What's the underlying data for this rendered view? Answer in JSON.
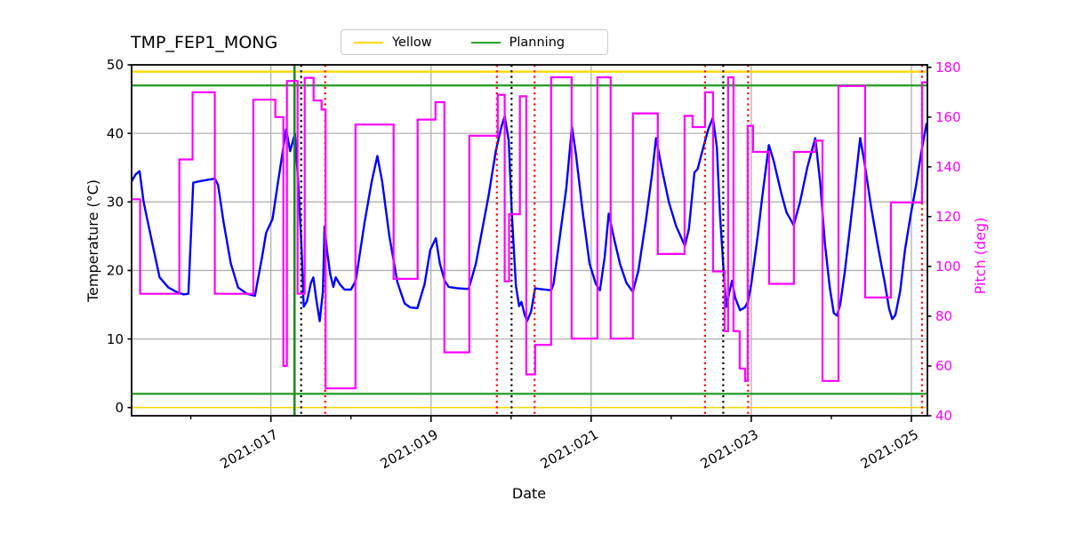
{
  "title": "TMP_FEP1_MONG",
  "legend": {
    "items": [
      {
        "label": "Yellow",
        "color": "#FFD700"
      },
      {
        "label": "Planning",
        "color": "#2CA02C"
      }
    ]
  },
  "colors": {
    "temperature": "#0000FF",
    "pitch": "#FF00FF",
    "yellow_limit": "#FFD700",
    "planning_limit": "#2CA02C",
    "red_marker": "#FF0000",
    "black_marker": "#000000",
    "green_marker": "#1E8C1E",
    "grid": "#B0B0B0",
    "spine": "#000000",
    "right_axis_text": "#FF00FF"
  },
  "axes": {
    "x_label": "Date",
    "y_left_label": "Temperature (°C)",
    "y_right_label": "Pitch (deg)",
    "x_range_days": [
      15.26,
      25.2
    ],
    "y_left_range": [
      -1.2,
      50
    ],
    "y_right_range": [
      40,
      181
    ],
    "x_ticks_major": [
      {
        "day": 17,
        "label": "2021:017"
      },
      {
        "day": 19,
        "label": "2021:019"
      },
      {
        "day": 21,
        "label": "2021:021"
      },
      {
        "day": 23,
        "label": "2021:023"
      },
      {
        "day": 25,
        "label": "2021:025"
      }
    ],
    "x_ticks_minor": [
      16,
      18,
      20,
      22,
      24
    ],
    "y_left_ticks": [
      0,
      10,
      20,
      30,
      40,
      50
    ],
    "y_right_ticks": [
      40,
      60,
      80,
      100,
      120,
      140,
      160,
      180
    ],
    "grid": "on"
  },
  "chart_data": {
    "type": "line",
    "title": "TMP_FEP1_MONG",
    "xlabel": "Date",
    "ylabel_left": "Temperature (°C)",
    "ylabel_right": "Pitch (deg)",
    "series": [
      {
        "name": "temperature",
        "axis": "left",
        "style": "line",
        "points": [
          [
            15.26,
            33.0
          ],
          [
            15.31,
            34.0
          ],
          [
            15.36,
            34.5
          ],
          [
            15.41,
            30.0
          ],
          [
            15.5,
            25.0
          ],
          [
            15.61,
            19.0
          ],
          [
            15.72,
            17.5
          ],
          [
            15.83,
            16.8
          ],
          [
            15.91,
            16.5
          ],
          [
            15.97,
            16.6
          ],
          [
            16.03,
            32.8
          ],
          [
            16.1,
            33.0
          ],
          [
            16.3,
            33.4
          ],
          [
            16.34,
            32.5
          ],
          [
            16.41,
            27.0
          ],
          [
            16.5,
            21.0
          ],
          [
            16.59,
            17.5
          ],
          [
            16.7,
            16.6
          ],
          [
            16.8,
            16.3
          ],
          [
            16.89,
            22.0
          ],
          [
            16.94,
            25.5
          ],
          [
            17.02,
            27.5
          ],
          [
            17.09,
            33.0
          ],
          [
            17.19,
            40.6
          ],
          [
            17.24,
            37.4
          ],
          [
            17.3,
            40.0
          ],
          [
            17.34,
            33.0
          ],
          [
            17.38,
            24.0
          ],
          [
            17.41,
            14.7
          ],
          [
            17.45,
            15.5
          ],
          [
            17.5,
            18.2
          ],
          [
            17.53,
            19.0
          ],
          [
            17.57,
            15.5
          ],
          [
            17.61,
            12.6
          ],
          [
            17.65,
            17.0
          ],
          [
            17.67,
            26.4
          ],
          [
            17.7,
            23.0
          ],
          [
            17.74,
            19.5
          ],
          [
            17.78,
            17.6
          ],
          [
            17.81,
            19.0
          ],
          [
            17.86,
            18.0
          ],
          [
            17.92,
            17.2
          ],
          [
            18.0,
            17.2
          ],
          [
            18.06,
            18.5
          ],
          [
            18.17,
            27.0
          ],
          [
            18.26,
            33.0
          ],
          [
            18.33,
            36.7
          ],
          [
            18.39,
            33.0
          ],
          [
            18.48,
            25.0
          ],
          [
            18.58,
            18.3
          ],
          [
            18.67,
            15.2
          ],
          [
            18.74,
            14.6
          ],
          [
            18.83,
            14.5
          ],
          [
            18.92,
            18.0
          ],
          [
            18.99,
            23.0
          ],
          [
            19.06,
            24.7
          ],
          [
            19.11,
            21.0
          ],
          [
            19.17,
            18.5
          ],
          [
            19.22,
            17.6
          ],
          [
            19.33,
            17.4
          ],
          [
            19.47,
            17.3
          ],
          [
            19.56,
            21.0
          ],
          [
            19.64,
            26.0
          ],
          [
            19.72,
            31.0
          ],
          [
            19.81,
            37.5
          ],
          [
            19.88,
            41.0
          ],
          [
            19.92,
            42.5
          ],
          [
            19.97,
            39.0
          ],
          [
            20.01,
            28.1
          ],
          [
            20.06,
            17.8
          ],
          [
            20.1,
            14.8
          ],
          [
            20.13,
            15.4
          ],
          [
            20.17,
            13.5
          ],
          [
            20.2,
            12.6
          ],
          [
            20.25,
            14.0
          ],
          [
            20.3,
            17.4
          ],
          [
            20.36,
            17.3
          ],
          [
            20.5,
            17.1
          ],
          [
            20.53,
            18.0
          ],
          [
            20.61,
            25.0
          ],
          [
            20.69,
            32.0
          ],
          [
            20.76,
            41.0
          ],
          [
            20.81,
            37.0
          ],
          [
            20.89,
            29.0
          ],
          [
            20.98,
            21.0
          ],
          [
            21.06,
            18.0
          ],
          [
            21.11,
            17.1
          ],
          [
            21.17,
            22.0
          ],
          [
            21.22,
            28.3
          ],
          [
            21.28,
            25.0
          ],
          [
            21.36,
            21.0
          ],
          [
            21.44,
            18.2
          ],
          [
            21.52,
            16.9
          ],
          [
            21.59,
            20.0
          ],
          [
            21.68,
            27.0
          ],
          [
            21.76,
            34.0
          ],
          [
            21.81,
            39.3
          ],
          [
            21.88,
            35.0
          ],
          [
            21.97,
            30.0
          ],
          [
            22.06,
            26.5
          ],
          [
            22.17,
            23.6
          ],
          [
            22.22,
            26.0
          ],
          [
            22.29,
            34.3
          ],
          [
            22.33,
            34.8
          ],
          [
            22.39,
            37.5
          ],
          [
            22.46,
            40.5
          ],
          [
            22.52,
            42.3
          ],
          [
            22.57,
            38.0
          ],
          [
            22.61,
            28.0
          ],
          [
            22.66,
            19.0
          ],
          [
            22.69,
            14.7
          ],
          [
            22.72,
            16.5
          ],
          [
            22.76,
            18.5
          ],
          [
            22.8,
            16.0
          ],
          [
            22.86,
            14.2
          ],
          [
            22.92,
            14.6
          ],
          [
            22.96,
            15.5
          ],
          [
            23.0,
            18.0
          ],
          [
            23.08,
            25.0
          ],
          [
            23.14,
            31.0
          ],
          [
            23.22,
            38.3
          ],
          [
            23.28,
            36.0
          ],
          [
            23.37,
            31.5
          ],
          [
            23.44,
            28.5
          ],
          [
            23.53,
            26.6
          ],
          [
            23.61,
            30.0
          ],
          [
            23.7,
            35.0
          ],
          [
            23.8,
            39.3
          ],
          [
            23.86,
            33.0
          ],
          [
            23.92,
            24.0
          ],
          [
            23.98,
            17.5
          ],
          [
            24.03,
            13.8
          ],
          [
            24.07,
            13.4
          ],
          [
            24.11,
            15.0
          ],
          [
            24.17,
            20.0
          ],
          [
            24.24,
            27.0
          ],
          [
            24.3,
            33.0
          ],
          [
            24.36,
            39.3
          ],
          [
            24.41,
            36.0
          ],
          [
            24.5,
            29.0
          ],
          [
            24.59,
            23.0
          ],
          [
            24.67,
            18.0
          ],
          [
            24.72,
            14.5
          ],
          [
            24.76,
            12.9
          ],
          [
            24.8,
            13.5
          ],
          [
            24.86,
            17.0
          ],
          [
            24.92,
            23.0
          ],
          [
            24.99,
            28.0
          ],
          [
            25.06,
            32.5
          ],
          [
            25.12,
            37.0
          ],
          [
            25.19,
            41.5
          ]
        ]
      },
      {
        "name": "pitch",
        "axis": "right",
        "style": "step",
        "points": [
          [
            15.26,
            127
          ],
          [
            15.367,
            89
          ],
          [
            15.856,
            143
          ],
          [
            16.022,
            170
          ],
          [
            16.3,
            89
          ],
          [
            16.78,
            167
          ],
          [
            17.056,
            160
          ],
          [
            17.156,
            60
          ],
          [
            17.2,
            174.5
          ],
          [
            17.333,
            89
          ],
          [
            17.422,
            175.8
          ],
          [
            17.533,
            166.7
          ],
          [
            17.633,
            163
          ],
          [
            17.683,
            51
          ],
          [
            18.056,
            157
          ],
          [
            18.533,
            95
          ],
          [
            18.833,
            159
          ],
          [
            19.056,
            166
          ],
          [
            19.167,
            65.5
          ],
          [
            19.478,
            152.5
          ],
          [
            19.833,
            169
          ],
          [
            19.92,
            94
          ],
          [
            19.975,
            121
          ],
          [
            20.11,
            168.4
          ],
          [
            20.19,
            56.6
          ],
          [
            20.3,
            68.5
          ],
          [
            20.5,
            176
          ],
          [
            20.756,
            71
          ],
          [
            21.078,
            176
          ],
          [
            21.244,
            71
          ],
          [
            21.522,
            161.5
          ],
          [
            21.833,
            105
          ],
          [
            22.167,
            160.5
          ],
          [
            22.267,
            156
          ],
          [
            22.422,
            170
          ],
          [
            22.522,
            98
          ],
          [
            22.667,
            74
          ],
          [
            22.711,
            176
          ],
          [
            22.778,
            74
          ],
          [
            22.856,
            59
          ],
          [
            22.922,
            54
          ],
          [
            22.956,
            156.5
          ],
          [
            23.022,
            146
          ],
          [
            23.222,
            93
          ],
          [
            23.533,
            146
          ],
          [
            23.8,
            150.5
          ],
          [
            23.889,
            54
          ],
          [
            24.089,
            172.5
          ],
          [
            24.422,
            87.5
          ],
          [
            24.744,
            125.7
          ],
          [
            25.133,
            174
          ]
        ],
        "end_day": 25.2
      }
    ],
    "limit_lines": [
      {
        "name": "yellow-high",
        "value": 49,
        "color_key": "yellow_limit",
        "width": 2.4
      },
      {
        "name": "planning-high",
        "value": 47,
        "color_key": "planning_limit",
        "width": 2.4
      },
      {
        "name": "planning-low",
        "value": 2,
        "color_key": "planning_limit",
        "width": 2.4
      },
      {
        "name": "yellow-low",
        "value": 0,
        "color_key": "yellow_limit",
        "width": 1.6
      }
    ],
    "event_lines": [
      {
        "day": 17.295,
        "color_key": "green_marker",
        "style": "solid"
      },
      {
        "day": 17.378,
        "color_key": "black_marker",
        "style": "dotted"
      },
      {
        "day": 17.678,
        "color_key": "red_marker",
        "style": "dotted"
      },
      {
        "day": 19.822,
        "color_key": "red_marker",
        "style": "dotted"
      },
      {
        "day": 20.006,
        "color_key": "black_marker",
        "style": "dotted"
      },
      {
        "day": 20.294,
        "color_key": "red_marker",
        "style": "dotted"
      },
      {
        "day": 22.422,
        "color_key": "red_marker",
        "style": "dotted"
      },
      {
        "day": 22.65,
        "color_key": "black_marker",
        "style": "dotted"
      },
      {
        "day": 22.961,
        "color_key": "red_marker",
        "style": "dotted"
      },
      {
        "day": 25.133,
        "color_key": "red_marker",
        "style": "dotted"
      }
    ]
  }
}
